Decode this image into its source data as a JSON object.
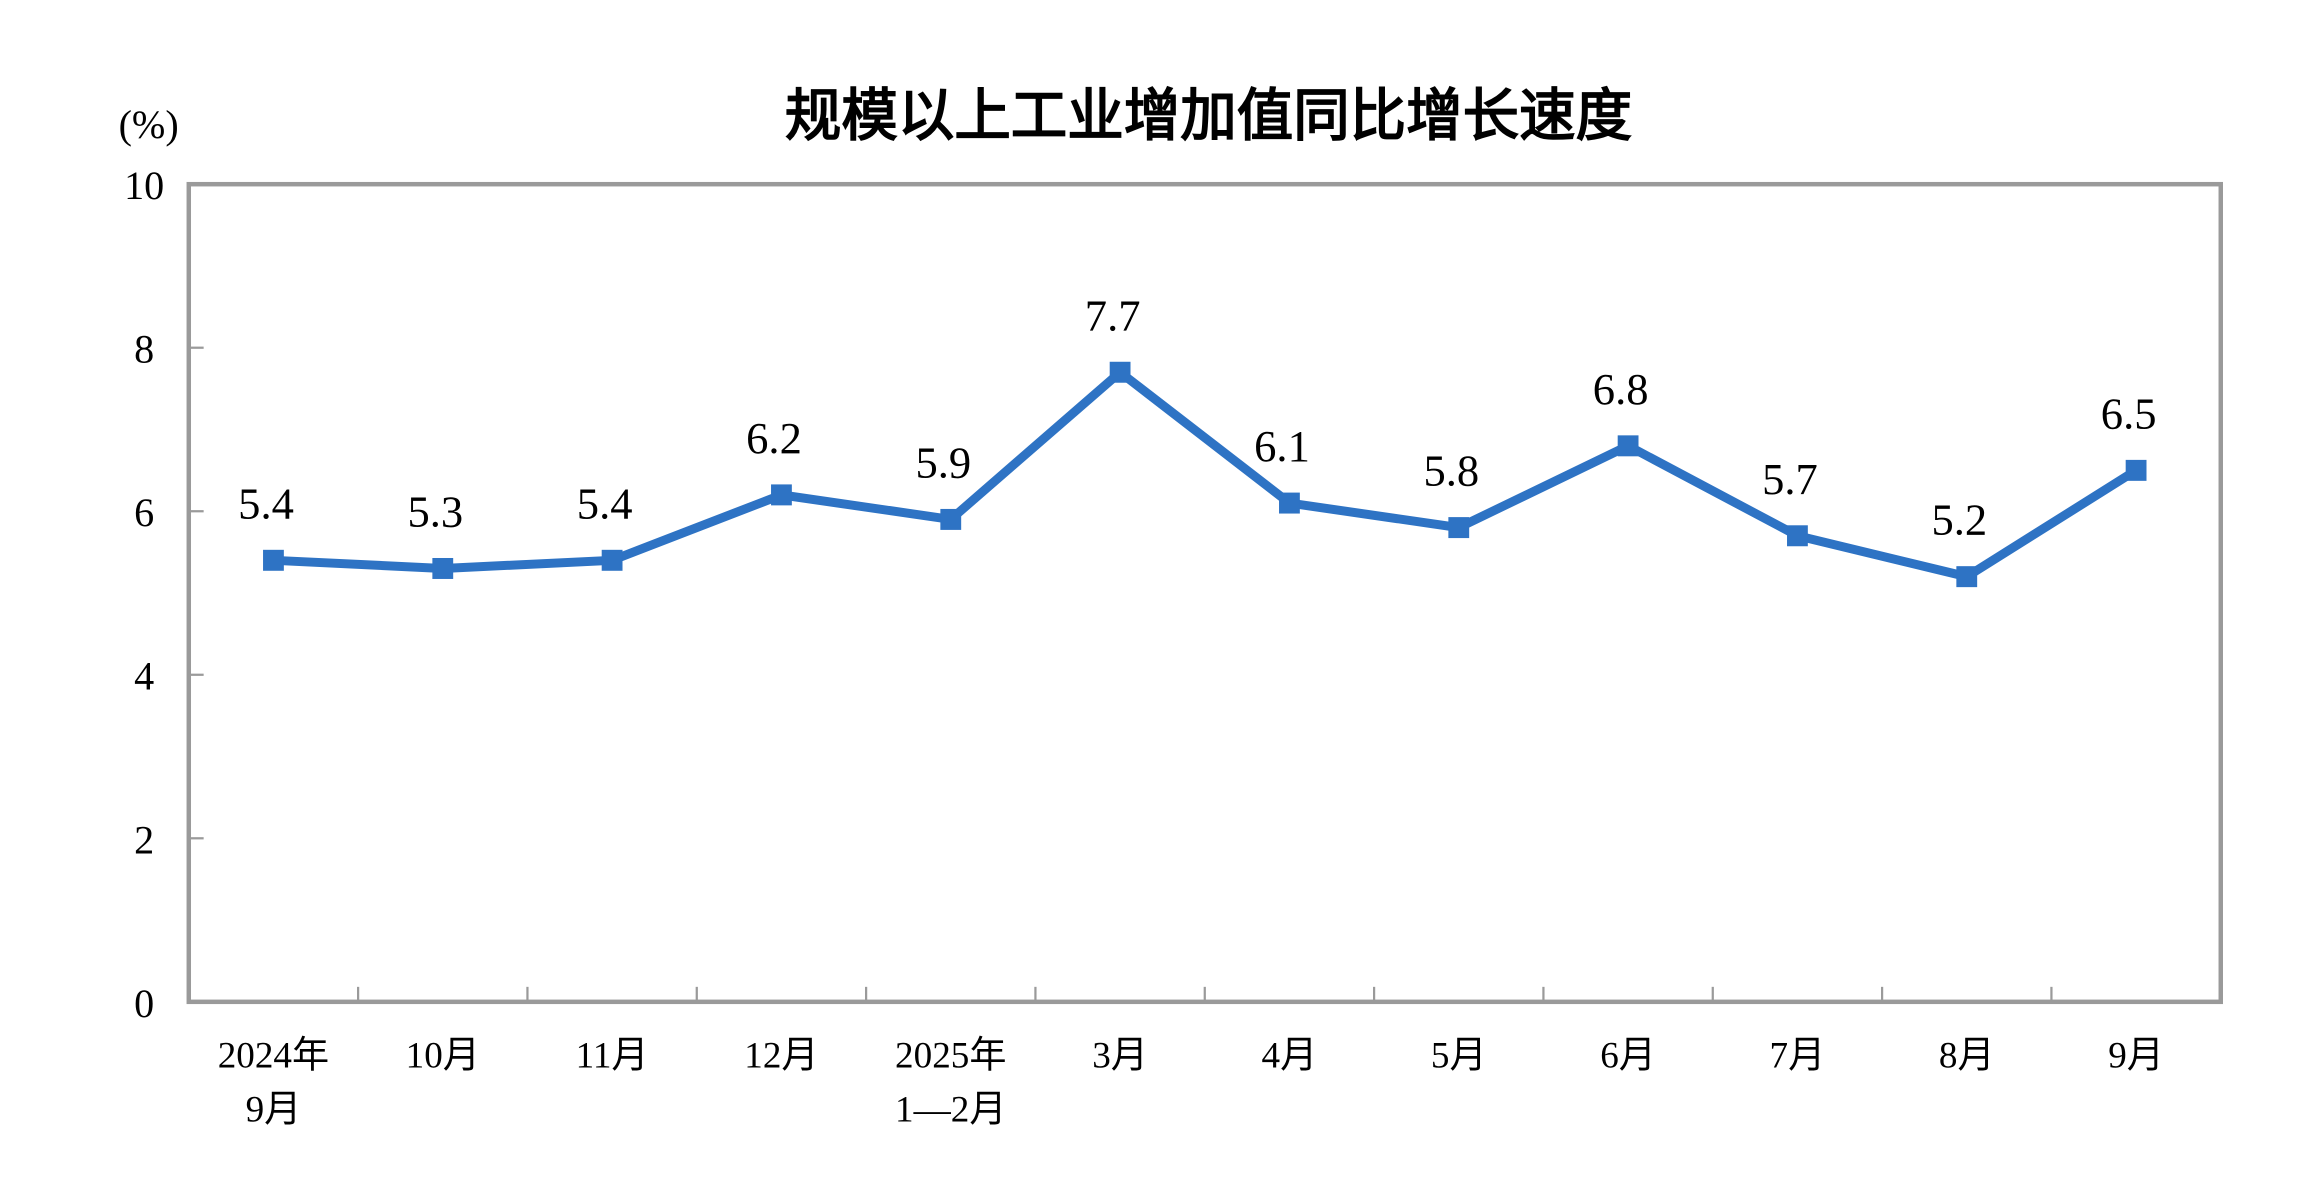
{
  "chart_data": {
    "type": "line",
    "title": "规模以上工业增加值同比增长速度",
    "ylabel": "(%)",
    "xlabel": "",
    "categories": [
      [
        "2024年",
        "9月"
      ],
      [
        "10月"
      ],
      [
        "11月"
      ],
      [
        "12月"
      ],
      [
        "2025年",
        "1—2月"
      ],
      [
        "3月"
      ],
      [
        "4月"
      ],
      [
        "5月"
      ],
      [
        "6月"
      ],
      [
        "7月"
      ],
      [
        "8月"
      ],
      [
        "9月"
      ]
    ],
    "values": [
      5.4,
      5.3,
      5.4,
      6.2,
      5.9,
      7.7,
      6.1,
      5.8,
      6.8,
      5.7,
      5.2,
      6.5
    ],
    "value_labels": [
      "5.4",
      "5.3",
      "5.4",
      "6.2",
      "5.9",
      "7.7",
      "6.1",
      "5.8",
      "6.8",
      "5.7",
      "5.2",
      "6.5"
    ],
    "ylim": [
      0,
      10
    ],
    "yticks": [
      "0",
      "2",
      "4",
      "6",
      "8",
      "10"
    ],
    "grid": false,
    "legend": "none",
    "marker": "square",
    "colors": {
      "line": "#2E73C4",
      "axis": "#9A9A9A"
    }
  }
}
